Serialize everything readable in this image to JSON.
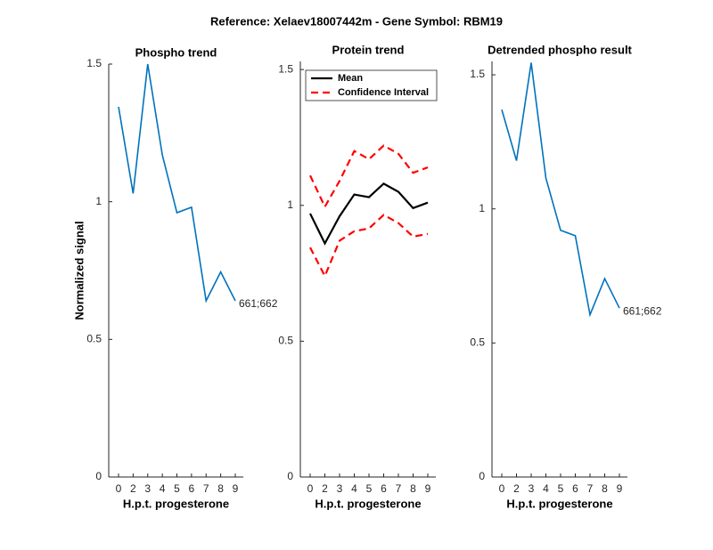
{
  "title": "Reference:  Xelaev18007442m - Gene Symbol:  RBM19",
  "chart_data": [
    {
      "type": "line",
      "title": "Phospho trend",
      "ylabel": "Normalized signal",
      "xlabel": "H.p.t. progesterone",
      "categories": [
        "0",
        "2",
        "3",
        "4",
        "5",
        "6",
        "7",
        "8",
        "9"
      ],
      "series": [
        {
          "color": "#0072bd",
          "values": [
            1.345,
            1.03,
            1.5,
            1.17,
            0.96,
            0.98,
            0.64,
            0.745,
            0.64
          ]
        }
      ],
      "point_label": "661;662",
      "ylim": [
        0,
        1.5
      ],
      "yticks": [
        0,
        0.5,
        1,
        1.5
      ]
    },
    {
      "type": "band-line",
      "title": "Protein trend",
      "xlabel": "H.p.t. progesterone",
      "categories": [
        "0",
        "2",
        "3",
        "4",
        "5",
        "6",
        "7",
        "8",
        "9"
      ],
      "series": [
        {
          "name": "Mean",
          "color": "#000000",
          "values": [
            0.97,
            0.86,
            0.96,
            1.04,
            1.03,
            1.08,
            1.05,
            0.99,
            1.01
          ]
        },
        {
          "name": "Confidence Interval",
          "color": "#ff0000",
          "upper": [
            1.11,
            0.995,
            1.09,
            1.2,
            1.17,
            1.22,
            1.19,
            1.12,
            1.14
          ],
          "lower": [
            0.845,
            0.74,
            0.87,
            0.905,
            0.915,
            0.965,
            0.935,
            0.885,
            0.895
          ]
        }
      ],
      "legend": "upper-left",
      "ylim": [
        0,
        1.53
      ],
      "yticks": [
        0,
        0.5,
        1,
        1.5
      ]
    },
    {
      "type": "line",
      "title": "Detrended phospho result",
      "xlabel": "H.p.t. progesterone",
      "categories": [
        "0",
        "2",
        "3",
        "4",
        "5",
        "6",
        "7",
        "8",
        "9"
      ],
      "series": [
        {
          "color": "#0072bd",
          "values": [
            1.37,
            1.18,
            1.545,
            1.115,
            0.92,
            0.9,
            0.605,
            0.74,
            0.63
          ]
        }
      ],
      "point_label": "661;662",
      "ylim": [
        0,
        1.55
      ],
      "yticks": [
        0,
        0.5,
        1,
        1.5
      ]
    }
  ]
}
